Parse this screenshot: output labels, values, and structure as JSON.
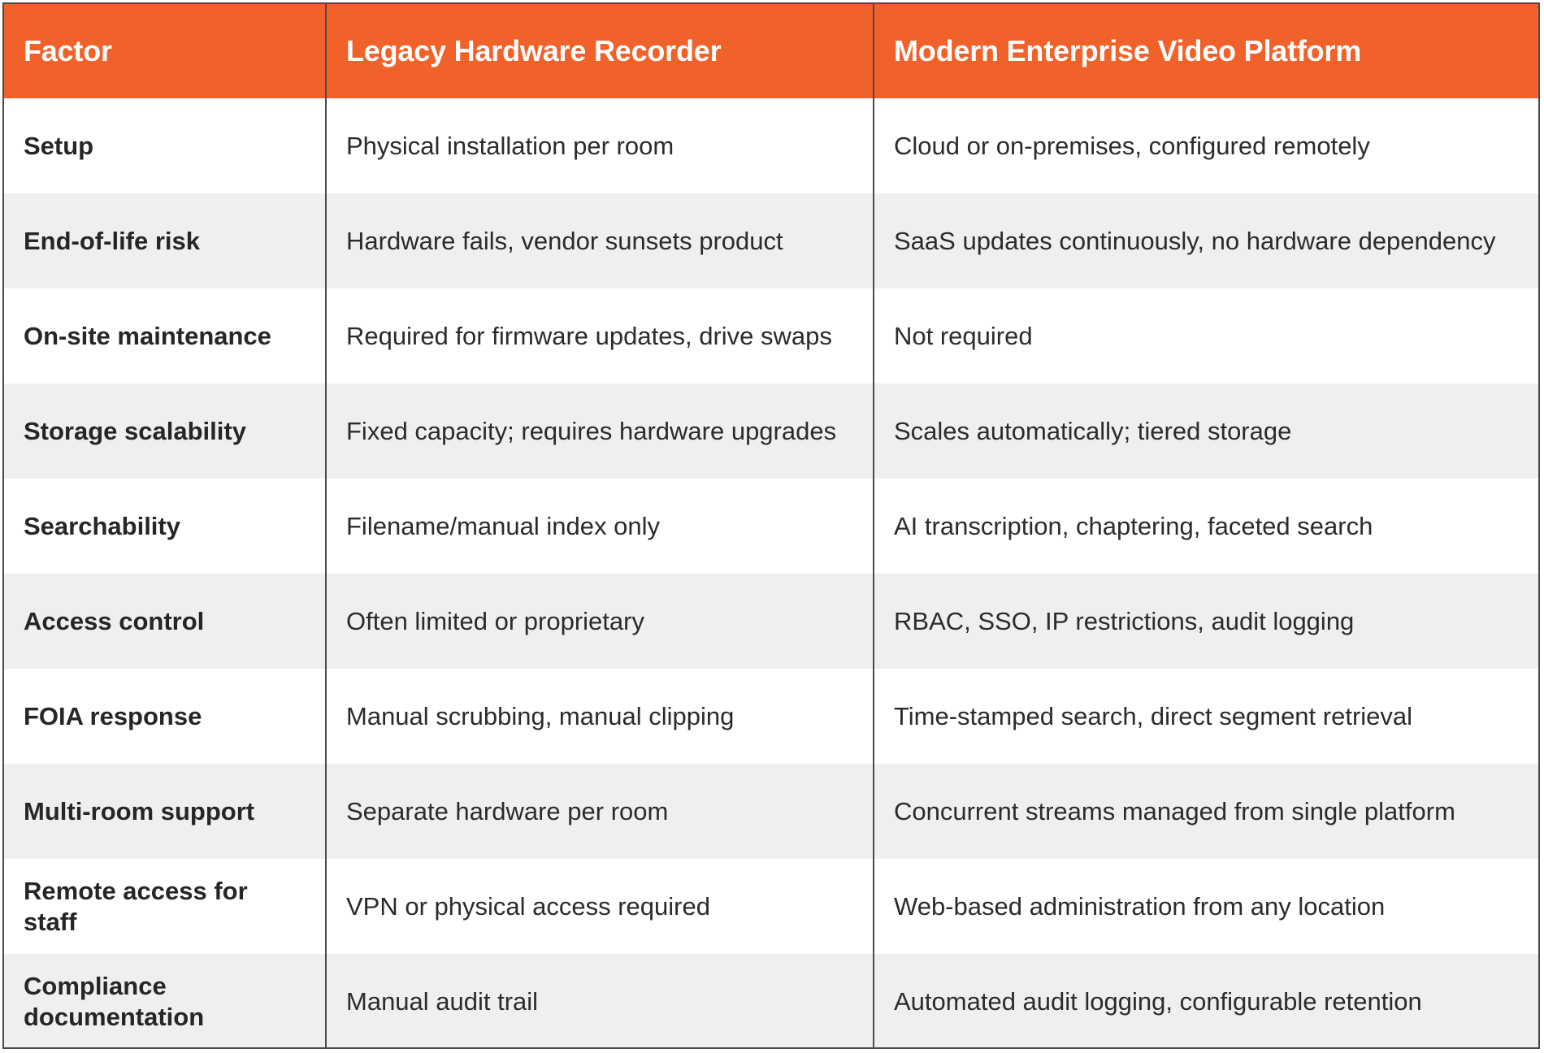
{
  "table": {
    "headers": [
      "Factor",
      "Legacy Hardware Recorder",
      "Modern Enterprise Video Platform"
    ],
    "rows": [
      [
        "Setup",
        "Physical installation per room",
        "Cloud or on-premises, configured remotely"
      ],
      [
        "End-of-life risk",
        "Hardware fails, vendor sunsets product",
        "SaaS updates continuously, no hardware dependency"
      ],
      [
        "On-site maintenance",
        "Required for firmware updates, drive swaps",
        "Not required"
      ],
      [
        "Storage scalability",
        "Fixed capacity; requires hardware upgrades",
        "Scales automatically; tiered storage"
      ],
      [
        "Searchability",
        "Filename/manual index only",
        "AI transcription, chaptering, faceted search"
      ],
      [
        "Access control",
        "Often limited or proprietary",
        "RBAC, SSO, IP restrictions, audit logging"
      ],
      [
        "FOIA response",
        "Manual scrubbing, manual clipping",
        "Time-stamped search, direct segment retrieval"
      ],
      [
        "Multi-room support",
        "Separate hardware per room",
        "Concurrent streams managed from single platform"
      ],
      [
        "Remote access for staff",
        "VPN or physical access required",
        "Web-based administration from any location"
      ],
      [
        "Compliance documentation",
        "Manual audit trail",
        "Automated audit logging, configurable retention"
      ]
    ]
  },
  "colors": {
    "header_bg": "#f1612a",
    "header_text": "#ffffff",
    "row_alt_bg": "#efefef",
    "border": "#4a4a4a"
  }
}
